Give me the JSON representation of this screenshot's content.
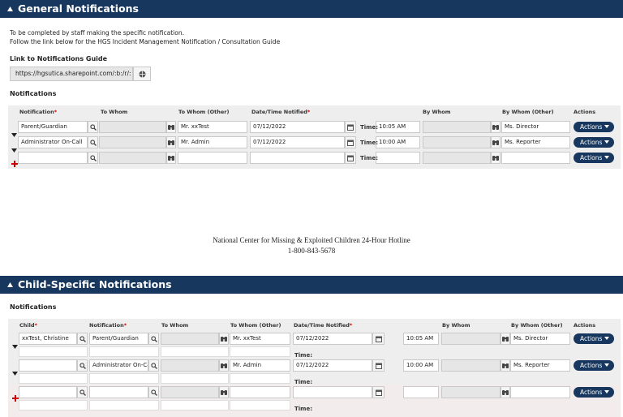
{
  "sections": [
    {
      "title": "General Notifications",
      "intro": [
        "To be completed by staff making the specific notification.",
        "Follow the link below for the HGS Incident Management Notification / Consultation Guide"
      ],
      "link_label": "Link to Notifications Guide",
      "link_value": "https://hgsutica.sharepoint.com/:b:/r/:",
      "table_title": "Notifications",
      "columns": [
        {
          "label": "Notification",
          "mark": "*"
        },
        {
          "label": "To Whom"
        },
        {
          "label": "To Whom (Other)"
        },
        {
          "label": "Date/Time Notified",
          "mark": "*"
        },
        {
          "label": "By Whom"
        },
        {
          "label": "By Whom (Other)"
        },
        {
          "label": "Actions"
        }
      ],
      "rows": [
        {
          "notification": "Parent/Guardian",
          "to_whom_other": "Mr. xxTest",
          "date": "07/12/2022",
          "time_label": "Time:",
          "time": "10:05 AM",
          "by_whom_other": "Ms. Director",
          "action": "Actions"
        },
        {
          "notification": "Administrator On-Call",
          "to_whom_other": "Mr. Admin",
          "date": "07/12/2022",
          "time_label": "Time:",
          "time": "10:00 AM",
          "by_whom_other": "Ms. Reporter",
          "action": "Actions"
        },
        {
          "time_label": "Time:",
          "action": "Actions"
        }
      ]
    },
    {
      "title": "Child-Specific Notifications",
      "table_title": "Notifications",
      "columns": [
        {
          "label": "Child",
          "mark": "*"
        },
        {
          "label": "Notification",
          "mark": "*"
        },
        {
          "label": "To Whom"
        },
        {
          "label": "To Whom (Other)"
        },
        {
          "label": "Date/Time Notified",
          "mark": "*"
        },
        {
          "label": "By Whom"
        },
        {
          "label": "By Whom (Other)"
        },
        {
          "label": "Actions"
        }
      ],
      "rows": [
        {
          "child": "xxTest, Christine",
          "notification": "Parent/Guardian",
          "to_whom_other": "Mr. xxTest",
          "date": "07/12/2022",
          "time": "10:05 AM",
          "by_whom_other": "Ms. Director",
          "action": "Actions",
          "time_label": "Time:"
        },
        {
          "notification": "Administrator On-Call",
          "to_whom_other": "Mr. Admin",
          "date": "07/12/2022",
          "time": "10:00 AM",
          "by_whom_other": "Ms. Reporter",
          "action": "Actions",
          "time_label": "Time:"
        },
        {
          "action": "Actions",
          "time_label": "Time:"
        }
      ]
    }
  ],
  "hotline": {
    "name": "National Center for Missing & Exploited Children 24-Hour Hotline",
    "phone": "1-800-843-5678"
  }
}
